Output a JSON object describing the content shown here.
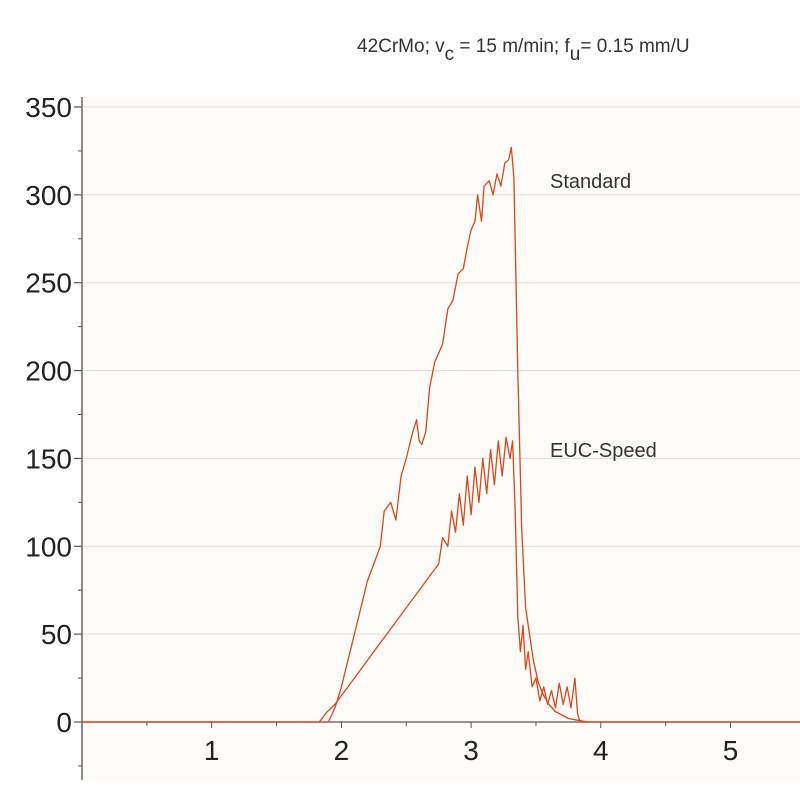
{
  "chart_data": {
    "type": "line",
    "title_parts": {
      "material": "42CrMo; v",
      "vc_sub": "c",
      "vc_value": " = 15 m/min;  f",
      "fu_sub": "u",
      "fu_value": "= 0.15 mm/U"
    },
    "xlabel": "",
    "ylabel": "",
    "xlim": [
      0,
      5.53
    ],
    "ylim": [
      -33,
      350
    ],
    "x_ticks": [
      1,
      2,
      3,
      4,
      5
    ],
    "y_ticks": [
      0,
      50,
      100,
      150,
      200,
      250,
      300,
      350
    ],
    "grid": "horizontal",
    "line_color": "#d24a1e",
    "background_color": "#fdfcf8",
    "series": [
      {
        "name": "Standard",
        "x": [
          0,
          1.9,
          1.95,
          2.0,
          2.05,
          2.1,
          2.15,
          2.2,
          2.25,
          2.3,
          2.33,
          2.38,
          2.42,
          2.46,
          2.5,
          2.55,
          2.58,
          2.6,
          2.62,
          2.65,
          2.68,
          2.72,
          2.78,
          2.82,
          2.86,
          2.9,
          2.94,
          2.97,
          3.0,
          3.03,
          3.05,
          3.08,
          3.1,
          3.14,
          3.17,
          3.2,
          3.23,
          3.26,
          3.29,
          3.31,
          3.33,
          3.36,
          3.39,
          3.42,
          3.45,
          3.48,
          3.52,
          3.56,
          3.6,
          3.65,
          3.7,
          3.75,
          3.82,
          3.9,
          5.53
        ],
        "values": [
          0,
          0,
          8,
          20,
          35,
          50,
          65,
          80,
          90,
          100,
          120,
          125,
          115,
          140,
          150,
          165,
          172,
          160,
          158,
          165,
          190,
          205,
          215,
          235,
          240,
          255,
          258,
          270,
          280,
          285,
          300,
          285,
          305,
          308,
          300,
          312,
          305,
          318,
          320,
          327,
          310,
          200,
          110,
          65,
          50,
          35,
          22,
          15,
          10,
          6,
          4,
          2,
          1,
          0,
          0
        ]
      },
      {
        "name": "EUC-Speed",
        "x": [
          0,
          1.83,
          1.88,
          1.95,
          2.0,
          2.1,
          2.2,
          2.3,
          2.4,
          2.5,
          2.6,
          2.7,
          2.75,
          2.78,
          2.82,
          2.85,
          2.88,
          2.91,
          2.94,
          2.97,
          3.0,
          3.03,
          3.06,
          3.09,
          3.12,
          3.15,
          3.18,
          3.21,
          3.24,
          3.27,
          3.3,
          3.32,
          3.34,
          3.36,
          3.38,
          3.4,
          3.42,
          3.44,
          3.47,
          3.5,
          3.53,
          3.56,
          3.59,
          3.62,
          3.65,
          3.68,
          3.71,
          3.74,
          3.77,
          3.8,
          3.82,
          3.84,
          5.53
        ],
        "values": [
          0,
          0,
          5,
          10,
          15,
          25,
          35,
          45,
          55,
          65,
          75,
          85,
          90,
          105,
          100,
          120,
          108,
          130,
          112,
          140,
          118,
          145,
          125,
          150,
          130,
          155,
          135,
          160,
          140,
          162,
          150,
          160,
          120,
          60,
          40,
          55,
          30,
          40,
          20,
          25,
          12,
          20,
          10,
          18,
          8,
          22,
          10,
          20,
          8,
          25,
          5,
          0,
          0
        ]
      }
    ],
    "annotations": [
      {
        "text": "Standard",
        "near_series": "Standard"
      },
      {
        "text": "EUC-Speed",
        "near_series": "EUC-Speed"
      }
    ]
  }
}
